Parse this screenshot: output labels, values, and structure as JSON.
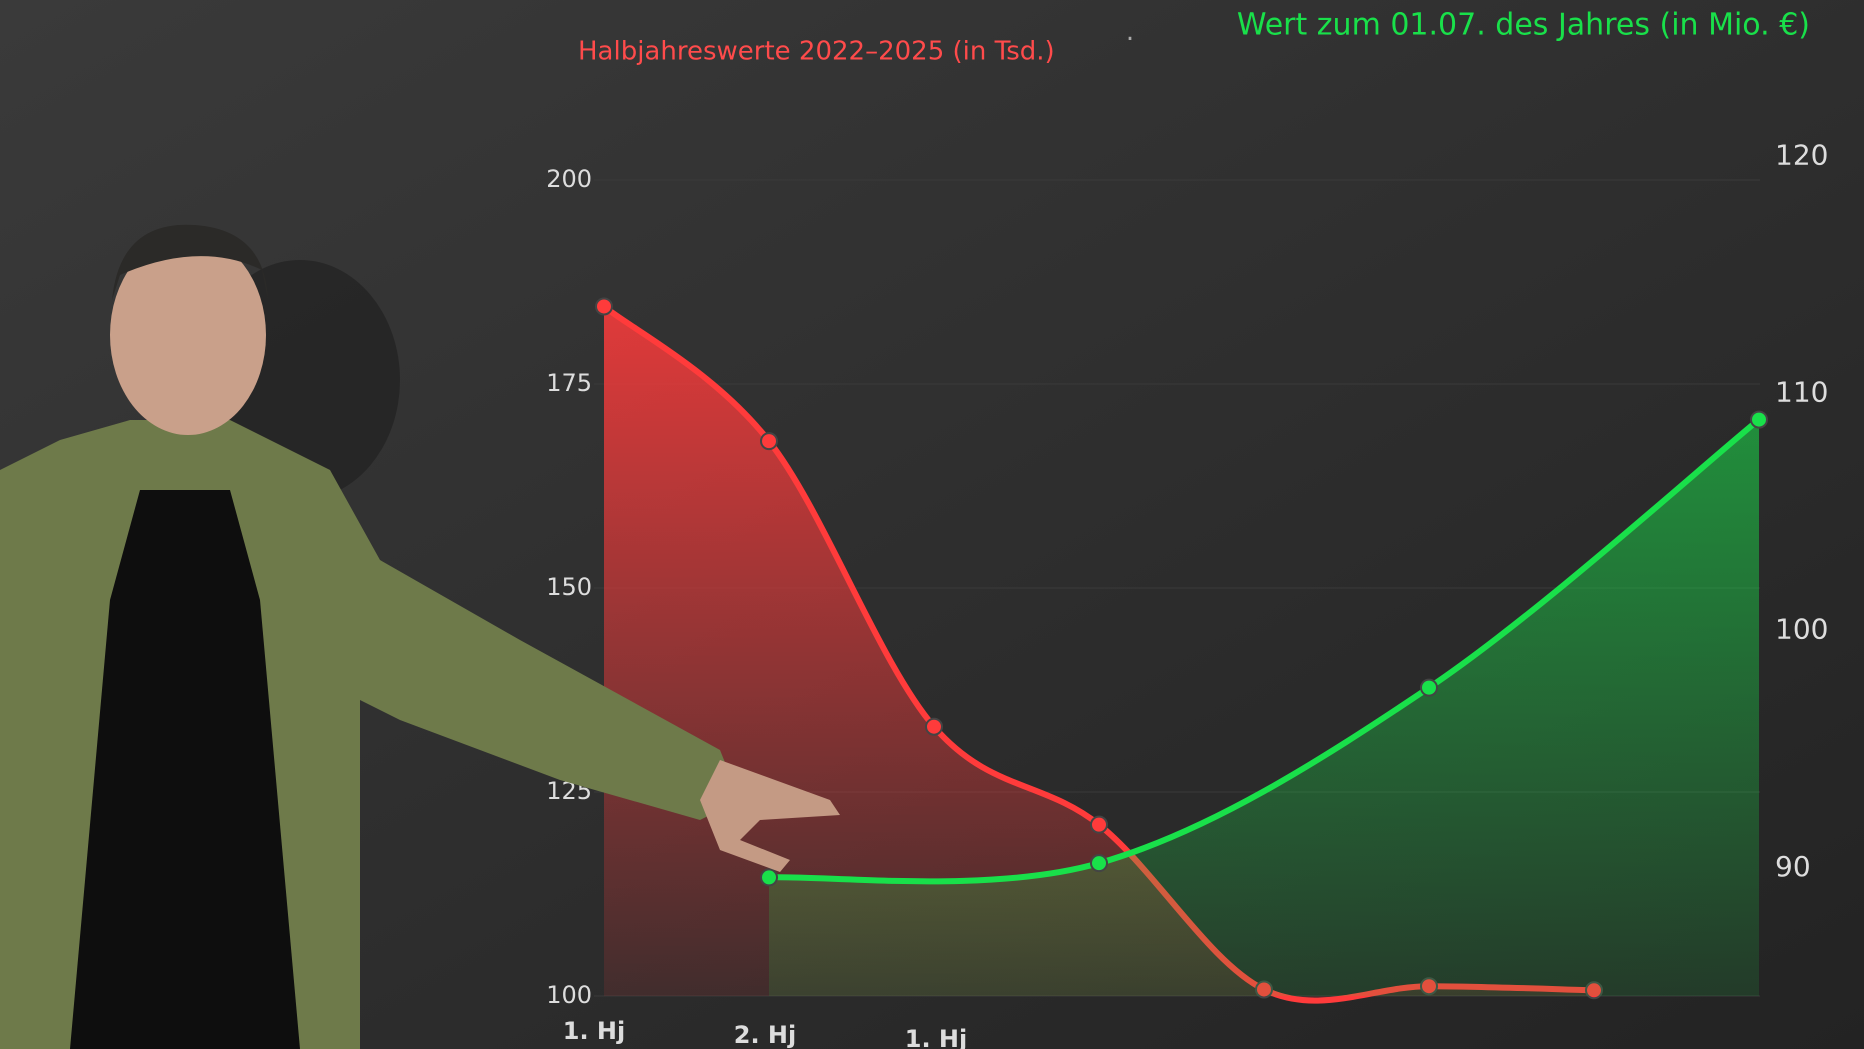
{
  "chart_data": {
    "type": "line",
    "ylabel": "Halbjahreswerte 2022–2025 (in Tsd.)",
    "separator": "·",
    "y2label": "Wert zum 01.07. des Jahres (in Mio. €)",
    "categories": [
      "1. Hj",
      "2. Hj",
      "1. Hj",
      null,
      null,
      null,
      null,
      null
    ],
    "series": [
      {
        "name": "Halbjahreswerte",
        "color": "#ff3b3b",
        "values": [
          184.5,
          168,
          133,
          121,
          100.8,
          101.2,
          100.7,
          null
        ]
      },
      {
        "name": "Wert zum 01.07.",
        "color": "#19e04a",
        "axis": "y2",
        "x": [
          1,
          3,
          5,
          7
        ],
        "values": [
          89.6,
          90.2,
          97.6,
          108.9
        ]
      }
    ],
    "ylim": [
      100,
      200
    ],
    "yticks": [
      100,
      125,
      150,
      175,
      200
    ],
    "y2lim": [
      84.6,
      119
    ],
    "y2ticks": [
      90,
      100,
      110,
      120
    ]
  }
}
